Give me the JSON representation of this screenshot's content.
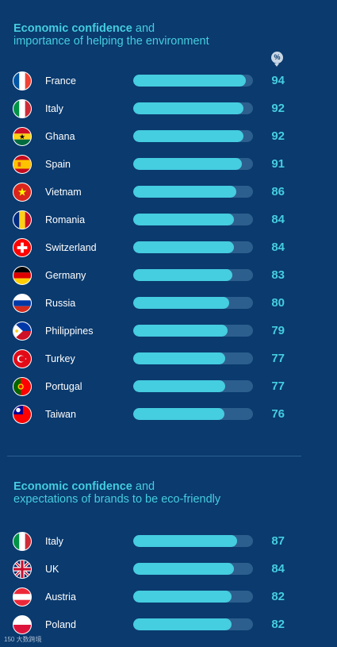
{
  "unit_badge": "%",
  "watermark": "150 大数跨境",
  "colors": {
    "background": "#0a3a6e",
    "accent": "#45cde0",
    "track": "#2d5f8e"
  },
  "chart_data": [
    {
      "type": "bar",
      "orientation": "horizontal",
      "title_bold": "Economic confidence",
      "title_rest": " and",
      "subtitle": "importance of helping the environment",
      "unit": "%",
      "xlim": [
        0,
        100
      ],
      "categories": [
        "France",
        "Italy",
        "Ghana",
        "Spain",
        "Vietnam",
        "Romania",
        "Switzerland",
        "Germany",
        "Russia",
        "Philippines",
        "Turkey",
        "Portugal",
        "Taiwan"
      ],
      "values": [
        94,
        92,
        92,
        91,
        86,
        84,
        84,
        83,
        80,
        79,
        77,
        77,
        76
      ],
      "flag_icons": [
        "france-flag-icon",
        "italy-flag-icon",
        "ghana-flag-icon",
        "spain-flag-icon",
        "vietnam-flag-icon",
        "romania-flag-icon",
        "switzerland-flag-icon",
        "germany-flag-icon",
        "russia-flag-icon",
        "philippines-flag-icon",
        "turkey-flag-icon",
        "portugal-flag-icon",
        "taiwan-flag-icon"
      ]
    },
    {
      "type": "bar",
      "orientation": "horizontal",
      "title_bold": "Economic confidence",
      "title_rest": " and",
      "subtitle": "expectations of brands to be eco-friendly",
      "unit": "%",
      "xlim": [
        0,
        100
      ],
      "categories": [
        "Italy",
        "UK",
        "Austria",
        "Poland"
      ],
      "values": [
        87,
        84,
        82,
        82
      ],
      "flag_icons": [
        "italy-flag-icon",
        "uk-flag-icon",
        "austria-flag-icon",
        "poland-flag-icon"
      ]
    }
  ]
}
